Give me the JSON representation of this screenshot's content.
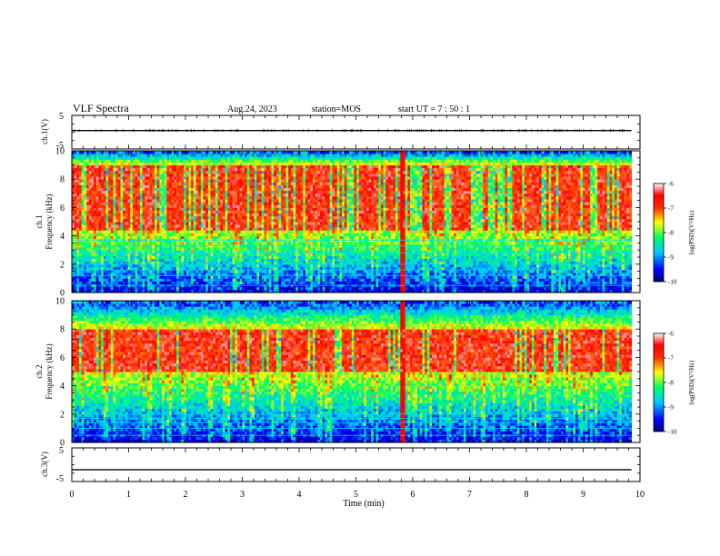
{
  "header": {
    "title": "VLF Spectra",
    "date": "Aug.24, 2023",
    "station": "station=MOS",
    "start": "start  UT =   7 : 50 : 1"
  },
  "chart_data": [
    {
      "type": "line",
      "name": "ch1-voltage",
      "ylabel": "ch.1(V)",
      "ylim": [
        -5,
        5
      ],
      "yticks": [
        "5",
        "-5"
      ],
      "x": [
        0,
        1,
        2,
        3,
        4,
        5,
        6,
        7,
        8,
        9,
        9.85
      ],
      "y": [
        0.5,
        0.5,
        0.5,
        0.5,
        0.5,
        0.5,
        0.5,
        0.5,
        0.5,
        0.5,
        0.5
      ],
      "line_color": "#000000"
    },
    {
      "type": "heatmap",
      "name": "ch1-spectrogram",
      "ylabel": "ch.1\nFrequency (kHz)",
      "ylim": [
        0,
        10
      ],
      "yticks": [
        "0",
        "2",
        "4",
        "6",
        "8",
        "10"
      ],
      "xlim": [
        0,
        10
      ],
      "data_end_min": 9.85,
      "colorbar": {
        "label": "log(PSD)(V²/Hz)",
        "range": [
          -10,
          -6
        ],
        "ticks": [
          "-6",
          "-7",
          "-8",
          "-9",
          "-10"
        ]
      },
      "strong_band_khz": [
        4.5,
        9.0
      ],
      "line_frequencies_khz": [
        0.5,
        1.2,
        1.6,
        2.0,
        2.8,
        3.3,
        3.7
      ],
      "burst_times_min": [
        5.8
      ]
    },
    {
      "type": "heatmap",
      "name": "ch2-spectrogram",
      "ylabel": "ch.2\nFrequency (kHz)",
      "ylim": [
        0,
        10
      ],
      "yticks": [
        "0",
        "2",
        "4",
        "6",
        "8",
        "10"
      ],
      "xlim": [
        0,
        10
      ],
      "data_end_min": 9.85,
      "colorbar": {
        "label": "log(PSD)(V²/Hz)",
        "range": [
          -10,
          -6
        ],
        "ticks": [
          "-6",
          "-7",
          "-8",
          "-9",
          "-10"
        ]
      },
      "strong_band_khz": [
        5.0,
        8.0
      ],
      "line_frequencies_khz": [
        0.5,
        1.0,
        1.4,
        1.7,
        2.0
      ],
      "burst_times_min": [
        5.8
      ]
    },
    {
      "type": "line",
      "name": "ch3-voltage",
      "ylabel": "ch.3(V)",
      "ylim": [
        -5,
        5
      ],
      "yticks": [
        "5",
        "-5"
      ],
      "xlabel": "Time (min)",
      "xlim": [
        0,
        10
      ],
      "xticks": [
        "0",
        "1",
        "2",
        "3",
        "4",
        "5",
        "6",
        "7",
        "8",
        "9",
        "10"
      ],
      "x": [
        0,
        1,
        2,
        3,
        4,
        5,
        6,
        7,
        8,
        9,
        9.85
      ],
      "y": [
        -1.5,
        -1.5,
        -1.5,
        -1.5,
        -1.5,
        -1.5,
        -1.5,
        -1.5,
        -1.5,
        -1.5,
        -1.5
      ],
      "line_color": "#000000"
    }
  ],
  "colors": {
    "colormap": [
      "#00007a",
      "#0000ff",
      "#00c8ff",
      "#00ff64",
      "#ffff00",
      "#ff6400",
      "#ff0000",
      "#ffffff"
    ]
  }
}
